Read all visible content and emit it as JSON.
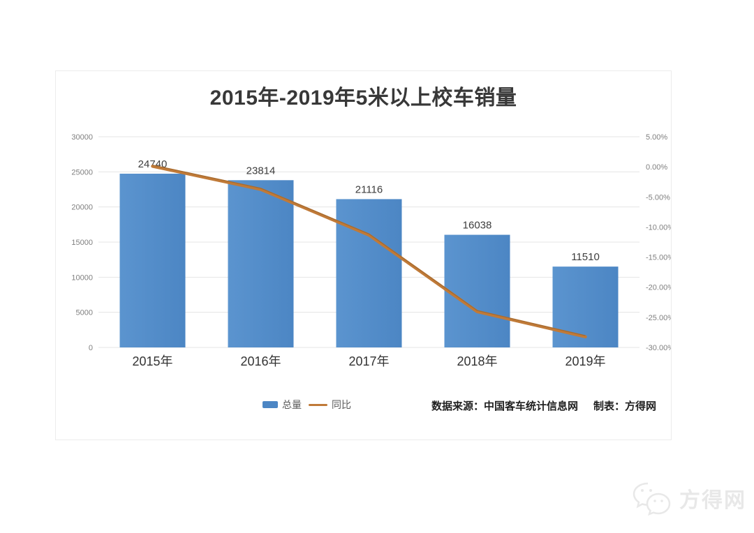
{
  "chart": {
    "title": "2015年-2019年5米以上校车销量",
    "footer": {
      "source_label": "数据来源：中国客车统计信息网",
      "maker_label": "制表：方得网"
    }
  },
  "watermark": {
    "brand": "方得网",
    "icon": "wechat-icon"
  },
  "colors": {
    "bar_fill": "#4c86c4",
    "bar_fill_light": "#5b94cf",
    "line_stroke": "#c07a38",
    "line_edge": "#8f5c26",
    "gridline": "#e4e4e4",
    "tick_text": "#7f7f7f",
    "bar_label_text": "#3d3d3d",
    "category_text": "#333333"
  },
  "chart_data": {
    "type": "bar",
    "subtype": "bar+line combo, line on secondary axis",
    "title": "2015年-2019年5米以上校车销量",
    "categories": [
      "2015年",
      "2016年",
      "2017年",
      "2018年",
      "2019年"
    ],
    "series": [
      {
        "name": "总量",
        "type": "bar",
        "axis": "left",
        "color": "#4c86c4",
        "values": [
          24740,
          23814,
          21116,
          16038,
          11510
        ],
        "data_labels": [
          "24740",
          "23814",
          "21116",
          "16038",
          "11510"
        ]
      },
      {
        "name": "同比",
        "type": "line",
        "axis": "right",
        "color": "#c07a38",
        "values_pct_estimated_from_line": [
          0.1,
          -3.74,
          -11.33,
          -24.05,
          -28.23
        ]
      }
    ],
    "left_axis": {
      "min": 0,
      "max": 30000,
      "step": 5000,
      "ticks_top_to_bottom": [
        "30000",
        "25000",
        "20000",
        "15000",
        "10000",
        "5000",
        "0"
      ]
    },
    "right_axis": {
      "min": -30,
      "max": 5,
      "step": 5,
      "ticks_top_to_bottom": [
        "5.00%",
        "0.00%",
        "-5.00%",
        "-10.00%",
        "-15.00%",
        "-20.00%",
        "-25.00%",
        "-30.00%"
      ]
    },
    "grid": true,
    "legend_position": "bottom",
    "legend_entries": [
      "总量",
      "同比"
    ]
  }
}
